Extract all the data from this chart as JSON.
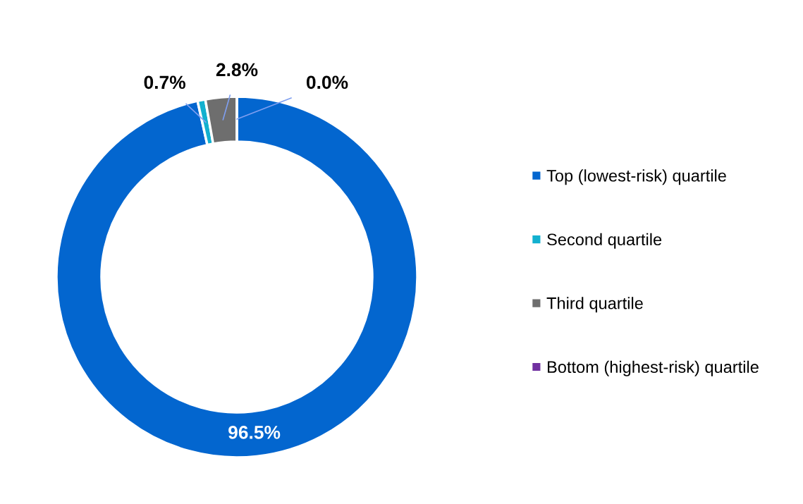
{
  "chart_data": {
    "type": "donut",
    "categories": [
      "Top (lowest-risk) quartile",
      "Second quartile",
      "Third quartile",
      "Bottom (highest-risk) quartile"
    ],
    "values": [
      96.5,
      0.7,
      2.8,
      0.0
    ],
    "colors": [
      "#0366cf",
      "#12b0cf",
      "#6e6e6e",
      "#7030a0"
    ],
    "value_labels": [
      "96.5%",
      "0.7%",
      "2.8%",
      "0.0%"
    ],
    "legend": "right"
  }
}
